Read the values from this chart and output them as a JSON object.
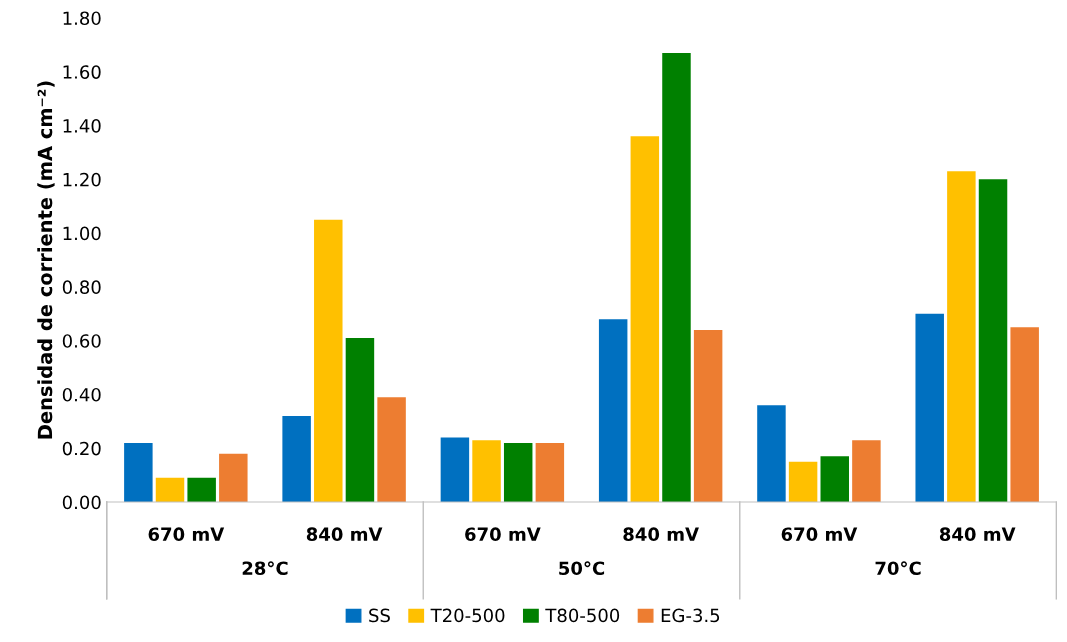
{
  "chart_data": {
    "type": "bar",
    "ylabel": "Densidad de corriente (mA cm⁻²)",
    "categories": [
      "670 mV",
      "840 mV",
      "670 mV",
      "840 mV",
      "670 mV",
      "840 mV"
    ],
    "annotations": [
      "28°C",
      "50°C",
      "70°C"
    ],
    "series": [
      {
        "name": "SS",
        "color": "#0070c0",
        "values": [
          0.22,
          0.32,
          0.24,
          0.68,
          0.36,
          0.7
        ]
      },
      {
        "name": "T20-500",
        "color": "#ffc000",
        "values": [
          0.09,
          1.05,
          0.23,
          1.36,
          0.15,
          1.23
        ]
      },
      {
        "name": "T80-500",
        "color": "#008000",
        "values": [
          0.09,
          0.61,
          0.22,
          1.67,
          0.17,
          1.2
        ]
      },
      {
        "name": "EG-3.5",
        "color": "#ed7d31",
        "values": [
          0.18,
          0.39,
          0.22,
          0.64,
          0.23,
          0.65
        ]
      }
    ],
    "ylim": [
      0,
      1.8
    ],
    "yticks": [
      {
        "value": 0,
        "label": "0.00"
      },
      {
        "value": 0.2,
        "label": "0.20"
      },
      {
        "value": 0.4,
        "label": "0.40"
      },
      {
        "value": 0.6,
        "label": "0.60"
      },
      {
        "value": 0.8,
        "label": "0.80"
      },
      {
        "value": 1.0,
        "label": "1.00"
      },
      {
        "value": 1.2,
        "label": "1.20"
      },
      {
        "value": 1.4,
        "label": "1.40"
      },
      {
        "value": 1.6,
        "label": "1.60"
      },
      {
        "value": 1.8,
        "label": "1.80"
      }
    ],
    "grid": false,
    "legend": "bottom"
  }
}
